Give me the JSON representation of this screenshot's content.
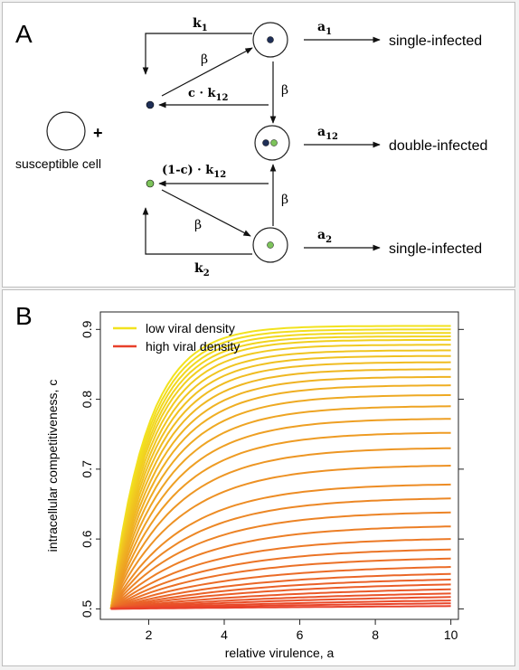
{
  "panel_a": {
    "letter": "A",
    "plus": "+",
    "susceptible_label": "susceptible cell",
    "beta": "β",
    "k1": {
      "base": "k",
      "sub": "1"
    },
    "k2": {
      "base": "k",
      "sub": "2"
    },
    "c_k12": {
      "pre": "c · k",
      "sub": "12"
    },
    "one_minus_c_k12": {
      "pre": "(1-c) · k",
      "sub": "12"
    },
    "a1": {
      "base": "a",
      "sub": "1"
    },
    "a2": {
      "base": "a",
      "sub": "2"
    },
    "a12": {
      "base": "a",
      "sub": "12"
    },
    "outcome_1": "single-infected",
    "outcome_12": "double-infected",
    "outcome_2": "single-infected",
    "colors": {
      "virus_1": "#1f2f57",
      "virus_2": "#7dc35b"
    }
  },
  "panel_b": {
    "letter": "B"
  },
  "chart_data": {
    "type": "line",
    "xlabel": "relative virulence, a",
    "ylabel": "intracellular competitiveness, c",
    "xlim": [
      1,
      10
    ],
    "ylim": [
      0.5,
      0.92
    ],
    "x_ticks": [
      "2",
      "4",
      "6",
      "8",
      "10"
    ],
    "y_ticks": [
      "0.5",
      "0.6",
      "0.7",
      "0.8",
      "0.9"
    ],
    "legend_position": "top-left",
    "legend": [
      {
        "name": "low viral density",
        "color": "#f2e21e"
      },
      {
        "name": "high viral density",
        "color": "#e8402a"
      }
    ],
    "family_end_values_at_a10": [
      0.905,
      0.9,
      0.895,
      0.89,
      0.885,
      0.878,
      0.87,
      0.862,
      0.853,
      0.843,
      0.832,
      0.82,
      0.806,
      0.79,
      0.772,
      0.752,
      0.73,
      0.705,
      0.678,
      0.658,
      0.638,
      0.618,
      0.6,
      0.585,
      0.572,
      0.56,
      0.55,
      0.542,
      0.535,
      0.528,
      0.522,
      0.517,
      0.512,
      0.508,
      0.504
    ],
    "family_start": {
      "x": 1,
      "y": 0.5
    }
  }
}
